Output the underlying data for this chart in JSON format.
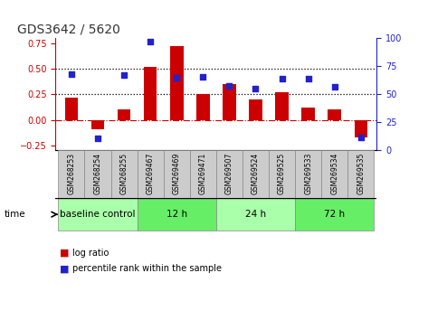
{
  "title": "GDS3642 / 5620",
  "samples": [
    "GSM268253",
    "GSM268254",
    "GSM268255",
    "GSM269467",
    "GSM269469",
    "GSM269471",
    "GSM269507",
    "GSM269524",
    "GSM269525",
    "GSM269533",
    "GSM269534",
    "GSM269535"
  ],
  "log_ratio": [
    0.22,
    -0.09,
    0.1,
    0.52,
    0.72,
    0.25,
    0.35,
    0.2,
    0.27,
    0.12,
    0.1,
    -0.17
  ],
  "percentile_rank": [
    68,
    11,
    67,
    97,
    65,
    66,
    58,
    55,
    64,
    64,
    57,
    12
  ],
  "bar_color": "#cc0000",
  "dot_color": "#2222cc",
  "ylim_left": [
    -0.3,
    0.8
  ],
  "ylim_right": [
    0,
    100
  ],
  "yticks_left": [
    -0.25,
    0,
    0.25,
    0.5,
    0.75
  ],
  "yticks_right": [
    0,
    25,
    50,
    75,
    100
  ],
  "hline_dotted": [
    0.25,
    0.5
  ],
  "hline_dash_color": "#cc0000",
  "groups": [
    {
      "label": "baseline control",
      "start": 0,
      "end": 3,
      "color": "#aaffaa"
    },
    {
      "label": "12 h",
      "start": 3,
      "end": 6,
      "color": "#66ee66"
    },
    {
      "label": "24 h",
      "start": 6,
      "end": 9,
      "color": "#aaffaa"
    },
    {
      "label": "72 h",
      "start": 9,
      "end": 12,
      "color": "#66ee66"
    }
  ],
  "left_tick_color": "#cc0000",
  "right_tick_color": "#2222cc",
  "xtick_bg_color": "#cccccc",
  "xtick_border_color": "#888888",
  "bar_width": 0.5,
  "plot_bg": "#ffffff"
}
